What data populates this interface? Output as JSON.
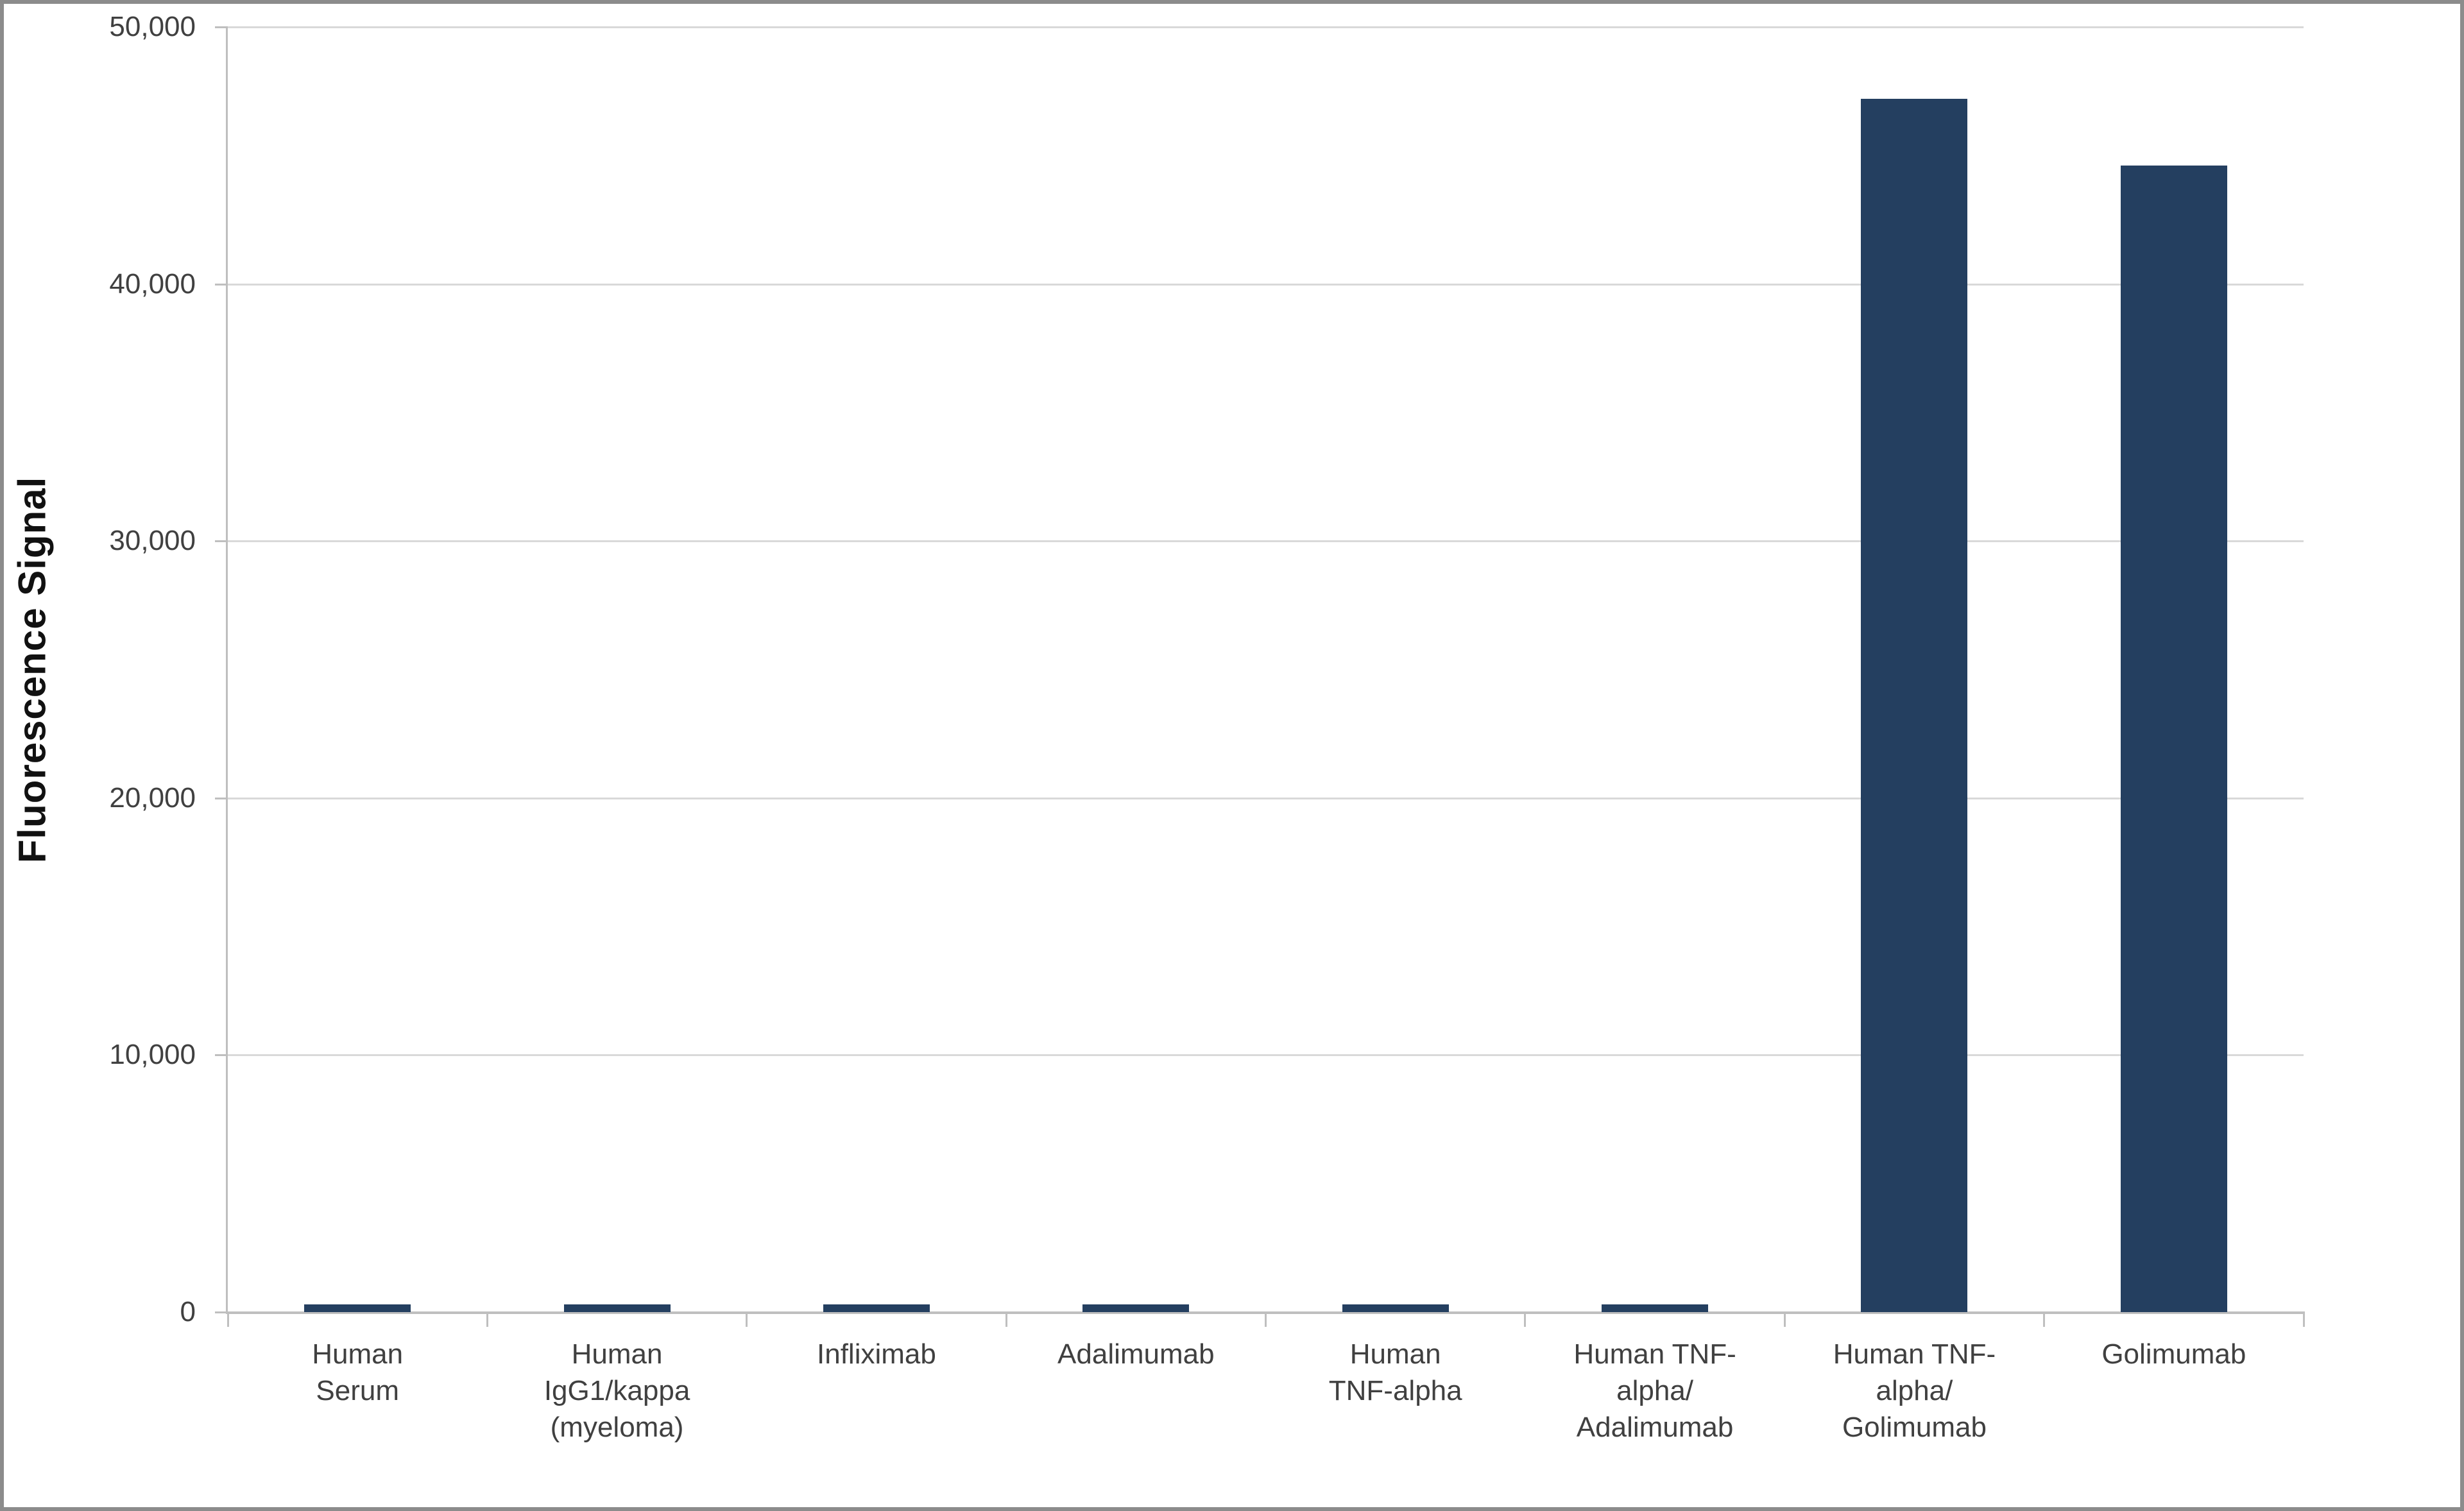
{
  "chart_data": {
    "type": "bar",
    "ylabel": "Fluorescence Signal",
    "ylim": [
      0,
      50000
    ],
    "ytick_step": 10000,
    "ytick_labels": [
      "0",
      "10,000",
      "20,000",
      "30,000",
      "40,000",
      "50,000"
    ],
    "grid": "horizontal",
    "legend_position": "none",
    "categories": [
      "Human Serum",
      "Human IgG1/kappa (myeloma)",
      "Infliximab",
      "Adalimumab",
      "Human TNF-alpha",
      "Human TNF-alpha/Adalimumab",
      "Human TNF-alpha/Golimumab",
      "Golimumab"
    ],
    "category_display_lines": [
      [
        "Human",
        "Serum"
      ],
      [
        "Human",
        "IgG1/kappa",
        "(myeloma)"
      ],
      [
        "Infliximab"
      ],
      [
        "Adalimumab"
      ],
      [
        "Human",
        "TNF-alpha"
      ],
      [
        "Human TNF-",
        "alpha/",
        "Adalimumab"
      ],
      [
        "Human TNF-",
        "alpha/",
        "Golimumab"
      ],
      [
        "Golimumab"
      ]
    ],
    "values": [
      300,
      300,
      300,
      300,
      300,
      300,
      47200,
      44600
    ],
    "bar_color": "#243F60",
    "gridline_color": "#D9D9D9",
    "axis_line_color": "#BFBFBF",
    "tick_text_color": "#404040",
    "axis_title_color": "#111111",
    "frame_color": "#8C8C8C",
    "background_color": "#FFFFFF"
  }
}
